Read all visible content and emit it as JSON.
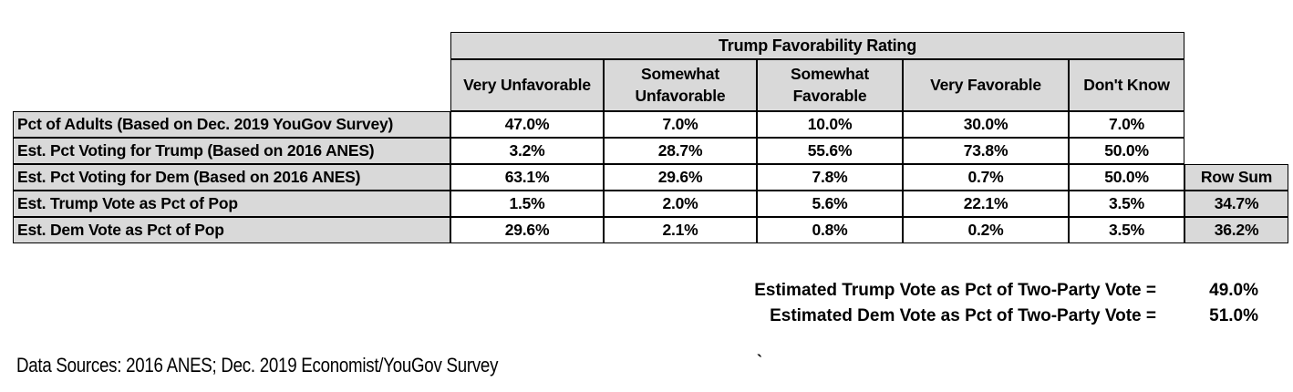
{
  "table": {
    "title": "Trump Favorability Rating",
    "column_headers": [
      "Very Unfavorable",
      "Somewhat Unfavorable",
      "Somewhat Favorable",
      "Very Favorable",
      "Don't Know"
    ],
    "row_sum_header": "Row Sum",
    "rows": [
      {
        "label": "Pct of Adults (Based on Dec. 2019 YouGov Survey)",
        "values": [
          "47.0%",
          "7.0%",
          "10.0%",
          "30.0%",
          "7.0%"
        ]
      },
      {
        "label": "Est. Pct Voting for Trump (Based on 2016 ANES)",
        "values": [
          "3.2%",
          "28.7%",
          "55.6%",
          "73.8%",
          "50.0%"
        ]
      },
      {
        "label": "Est. Pct Voting for Dem (Based on 2016 ANES)",
        "values": [
          "63.1%",
          "29.6%",
          "7.8%",
          "0.7%",
          "50.0%"
        ]
      },
      {
        "label": "Est. Trump Vote as Pct of Pop",
        "values": [
          "1.5%",
          "2.0%",
          "5.6%",
          "22.1%",
          "3.5%"
        ],
        "row_sum": "34.7%"
      },
      {
        "label": "Est. Dem Vote as Pct of Pop",
        "values": [
          "29.6%",
          "2.1%",
          "0.8%",
          "0.2%",
          "3.5%"
        ],
        "row_sum": "36.2%"
      }
    ]
  },
  "summary": [
    {
      "label": "Estimated Trump Vote as Pct of Two-Party Vote =",
      "value": "49.0%"
    },
    {
      "label": "Estimated Dem Vote as Pct of Two-Party Vote =",
      "value": "51.0%"
    }
  ],
  "footer": {
    "data_sources": "Data Sources: 2016 ANES; Dec. 2019 Economist/YouGov Survey",
    "stray_mark": "`"
  },
  "colors": {
    "header_fill": "#d9d9d9",
    "cell_fill": "#ffffff",
    "border": "#000000",
    "text": "#000000"
  }
}
